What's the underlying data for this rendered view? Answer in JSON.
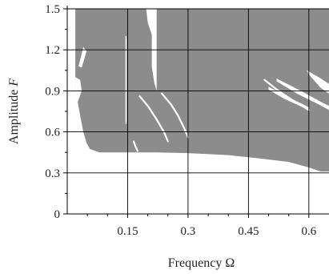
{
  "chart_data": {
    "type": "area",
    "xlabel": "Frequency Ω",
    "ylabel_prefix": "Amplitude ",
    "ylabel_var": "F",
    "xlim": [
      0,
      0.65
    ],
    "ylim": [
      0,
      1.5
    ],
    "xticks": [
      {
        "value": 0.15,
        "label": "0.15"
      },
      {
        "value": 0.3,
        "label": "0.3"
      },
      {
        "value": 0.45,
        "label": "0.45"
      },
      {
        "value": 0.6,
        "label": "0.6"
      }
    ],
    "yticks": [
      {
        "value": 0,
        "label": "0"
      },
      {
        "value": 0.3,
        "label": "0.3"
      },
      {
        "value": 0.6,
        "label": "0.6"
      },
      {
        "value": 0.9,
        "label": "0.9"
      },
      {
        "value": 1.2,
        "label": "1.2"
      },
      {
        "value": 1.5,
        "label": "1.5"
      }
    ],
    "grid": true,
    "fill_color": "#8c8c8c",
    "region": {
      "lower_boundary": [
        [
          0.02,
          1.5
        ],
        [
          0.02,
          0.92
        ],
        [
          0.026,
          0.82
        ],
        [
          0.032,
          0.72
        ],
        [
          0.04,
          0.6
        ],
        [
          0.048,
          0.52
        ],
        [
          0.056,
          0.475
        ],
        [
          0.08,
          0.45
        ],
        [
          0.15,
          0.45
        ],
        [
          0.22,
          0.45
        ],
        [
          0.3,
          0.445
        ],
        [
          0.4,
          0.43
        ],
        [
          0.48,
          0.405
        ],
        [
          0.55,
          0.38
        ],
        [
          0.6,
          0.34
        ],
        [
          0.63,
          0.31
        ],
        [
          0.65,
          0.31
        ]
      ],
      "top": 1.5,
      "x_max": 0.65
    },
    "gaps": [
      {
        "name": "gap-left-upper",
        "points": [
          [
            0.028,
            1.08
          ],
          [
            0.04,
            1.22
          ],
          [
            0.048,
            1.19
          ],
          [
            0.036,
            1.07
          ]
        ]
      },
      {
        "name": "gap-left-edge",
        "points": [
          [
            0.02,
            1.0
          ],
          [
            0.032,
            0.98
          ],
          [
            0.036,
            0.9
          ],
          [
            0.026,
            0.82
          ],
          [
            0.02,
            0.84
          ]
        ]
      },
      {
        "name": "gap-central-column",
        "points": [
          [
            0.196,
            1.5
          ],
          [
            0.22,
            1.5
          ],
          [
            0.22,
            1.3
          ],
          [
            0.21,
            1.31
          ],
          [
            0.2,
            1.4
          ]
        ]
      },
      {
        "name": "gap-central-notch",
        "points": [
          [
            0.21,
            1.5
          ],
          [
            0.222,
            1.5
          ],
          [
            0.222,
            0.9
          ],
          [
            0.216,
            0.96
          ],
          [
            0.21,
            1.08
          ]
        ]
      },
      {
        "name": "gap-right-upper",
        "points": [
          [
            0.595,
            1.05
          ],
          [
            0.63,
            0.99
          ],
          [
            0.65,
            0.95
          ],
          [
            0.65,
            0.88
          ],
          [
            0.63,
            0.92
          ],
          [
            0.6,
            1.02
          ]
        ]
      },
      {
        "name": "gap-right-strip",
        "points": [
          [
            0.52,
            0.99
          ],
          [
            0.58,
            0.9
          ],
          [
            0.63,
            0.82
          ],
          [
            0.65,
            0.79
          ],
          [
            0.65,
            0.76
          ],
          [
            0.625,
            0.8
          ],
          [
            0.57,
            0.88
          ],
          [
            0.52,
            0.97
          ]
        ]
      },
      {
        "name": "gap-right-band",
        "points": [
          [
            0.5,
            0.93
          ],
          [
            0.545,
            0.86
          ],
          [
            0.6,
            0.78
          ],
          [
            0.6,
            0.76
          ],
          [
            0.54,
            0.84
          ],
          [
            0.5,
            0.91
          ]
        ]
      }
    ],
    "curves": [
      {
        "name": "curve-1",
        "points": [
          [
            0.18,
            0.86
          ],
          [
            0.2,
            0.79
          ],
          [
            0.22,
            0.7
          ],
          [
            0.24,
            0.6
          ],
          [
            0.25,
            0.53
          ]
        ]
      },
      {
        "name": "curve-2",
        "points": [
          [
            0.235,
            0.88
          ],
          [
            0.258,
            0.8
          ],
          [
            0.275,
            0.72
          ],
          [
            0.29,
            0.63
          ],
          [
            0.3,
            0.56
          ]
        ]
      },
      {
        "name": "curve-3",
        "points": [
          [
            0.49,
            0.98
          ],
          [
            0.52,
            0.91
          ],
          [
            0.56,
            0.83
          ],
          [
            0.6,
            0.76
          ]
        ]
      },
      {
        "name": "curve-4",
        "points": [
          [
            0.165,
            0.53
          ],
          [
            0.17,
            0.49
          ],
          [
            0.175,
            0.46
          ]
        ]
      }
    ],
    "vertical_gap": {
      "x": 0.146,
      "y_from": 0.66,
      "y_to": 1.3
    }
  }
}
